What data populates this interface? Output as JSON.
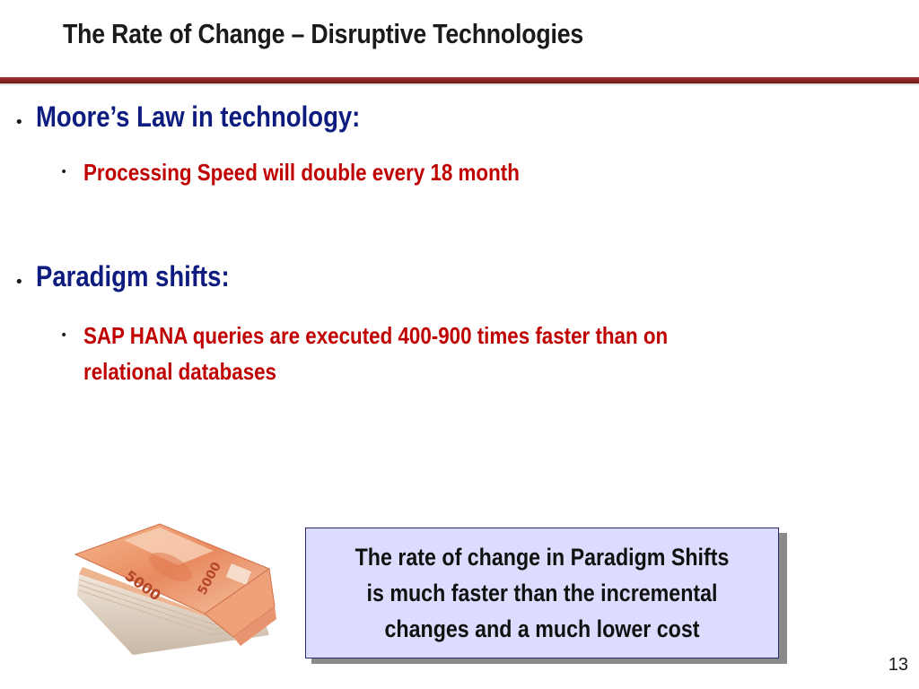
{
  "slide": {
    "title": "The Rate of Change – Disruptive Technologies",
    "page_number": "13",
    "accent_color": "#8b2525"
  },
  "bullets": [
    {
      "text": "Moore’s Law in technology:",
      "color": "#0e1c80",
      "sub": [
        "Processing Speed will double every 18 month"
      ]
    },
    {
      "text": "Paradigm shifts:",
      "color": "#0e1c80",
      "sub": [
        "SAP HANA queries are executed 400-900 times faster than on",
        "relational databases"
      ]
    }
  ],
  "callout": {
    "line1": "The rate of change in Paradigm Shifts",
    "line2": "is much faster than the incremental",
    "line3": "changes and a much lower cost",
    "background": "#dcdcff"
  },
  "image": {
    "name": "banknotes-stack-image",
    "denomination": "5000"
  }
}
